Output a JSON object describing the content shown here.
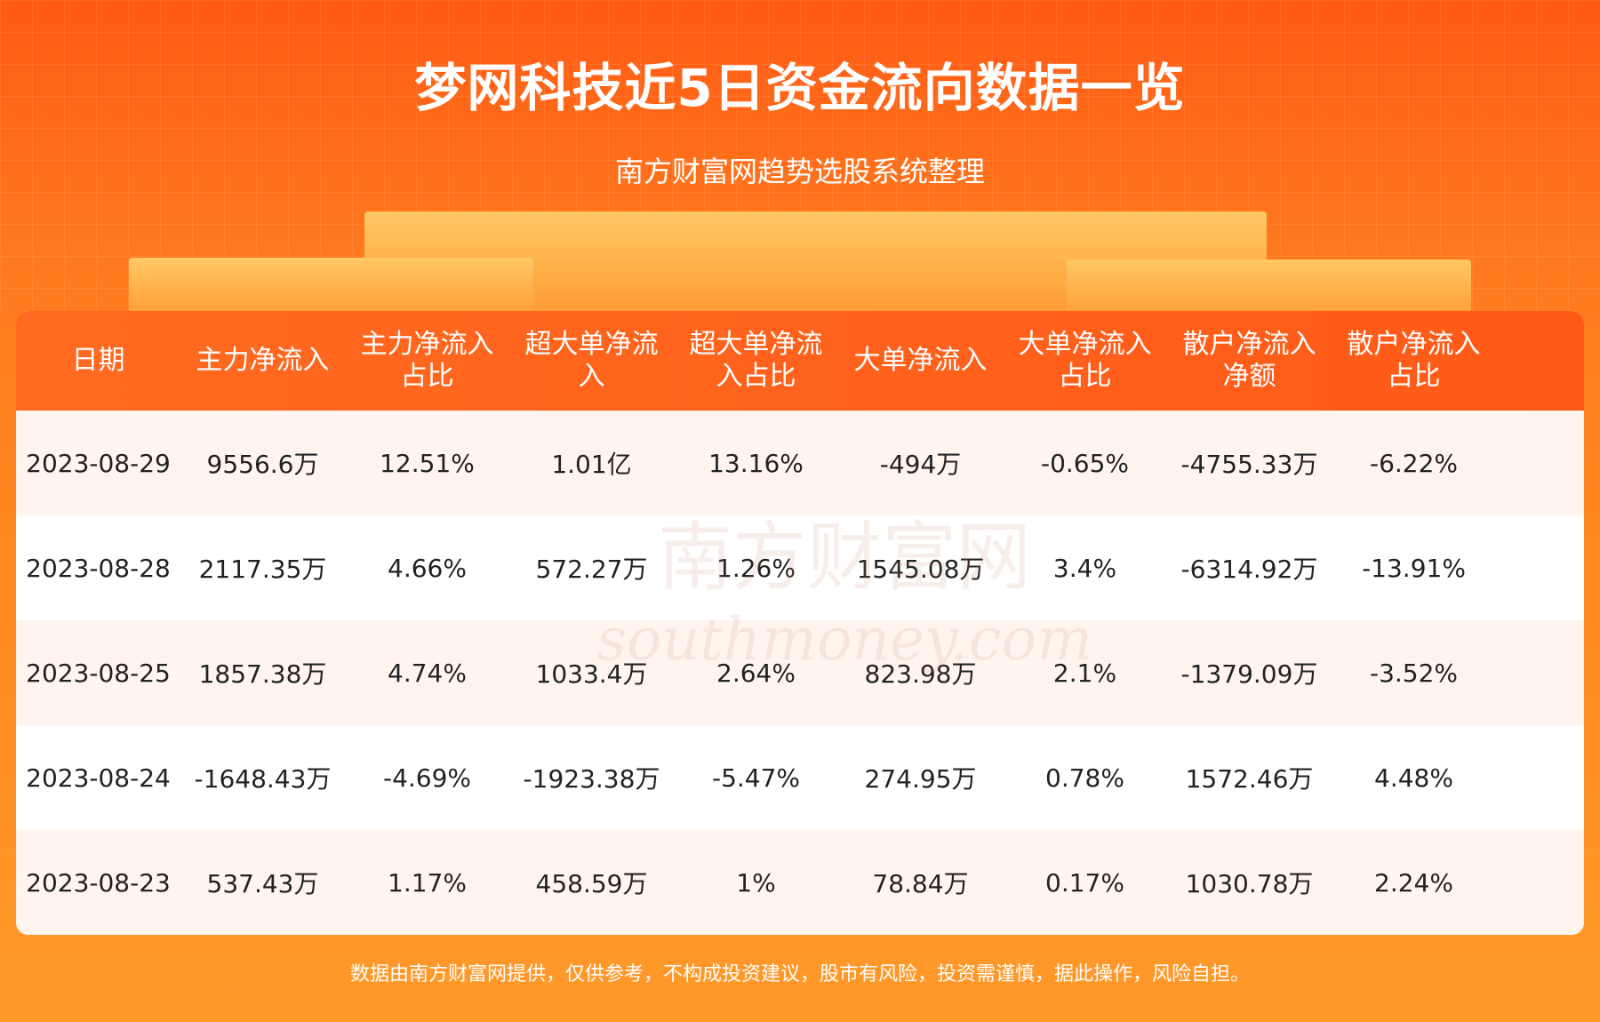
{
  "header": {
    "title": "梦网科技近5日资金流向数据一览",
    "subtitle": "南方财富网趋势选股系统整理"
  },
  "table": {
    "headers": [
      "日期",
      "主力净流入",
      "主力净流入占比",
      "超大单净流入",
      "超大单净流入占比",
      "大单净流入",
      "大单净流入占比",
      "散户净流入净额",
      "散户净流入占比"
    ],
    "rows": [
      [
        "2023-08-29",
        "9556.6万",
        "12.51%",
        "1.01亿",
        "13.16%",
        "-494万",
        "-0.65%",
        "-4755.33万",
        "-6.22%"
      ],
      [
        "2023-08-28",
        "2117.35万",
        "4.66%",
        "572.27万",
        "1.26%",
        "1545.08万",
        "3.4%",
        "-6314.92万",
        "-13.91%"
      ],
      [
        "2023-08-25",
        "1857.38万",
        "4.74%",
        "1033.4万",
        "2.64%",
        "823.98万",
        "2.1%",
        "-1379.09万",
        "-3.52%"
      ],
      [
        "2023-08-24",
        "-1648.43万",
        "-4.69%",
        "-1923.38万",
        "-5.47%",
        "274.95万",
        "0.78%",
        "1572.46万",
        "4.48%"
      ],
      [
        "2023-08-23",
        "537.43万",
        "1.17%",
        "458.59万",
        "1%",
        "78.84万",
        "0.17%",
        "1030.78万",
        "2.24%"
      ]
    ]
  },
  "watermark": {
    "cn": "南方财富网",
    "en": "southmoney.com"
  },
  "footer": "数据由南方财富网提供，仅供参考，不构成投资建议，股市有风险，投资需谨慎，据此操作，风险自担。"
}
